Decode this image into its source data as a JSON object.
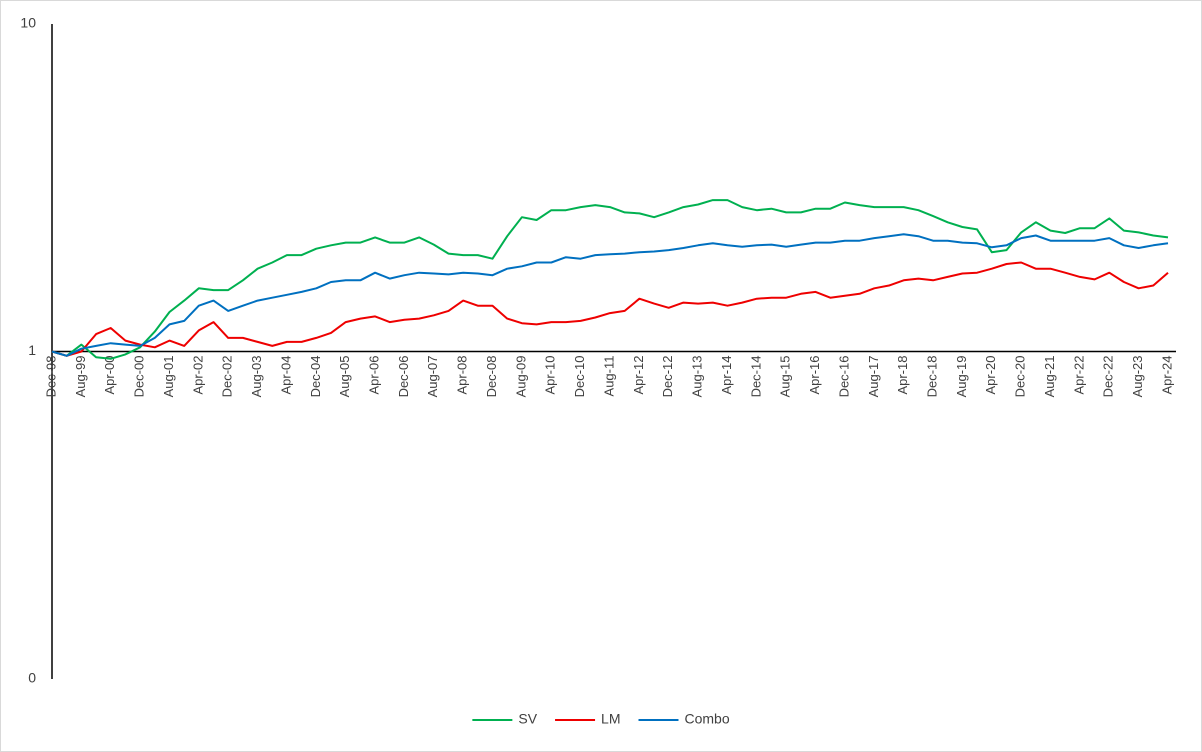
{
  "chart_data": {
    "type": "line",
    "categories": [
      "Dec-98",
      null,
      "Aug-99",
      null,
      "Apr-00",
      null,
      "Dec-00",
      null,
      "Aug-01",
      null,
      "Apr-02",
      null,
      "Dec-02",
      null,
      "Aug-03",
      null,
      "Apr-04",
      null,
      "Dec-04",
      null,
      "Aug-05",
      null,
      "Apr-06",
      null,
      "Dec-06",
      null,
      "Aug-07",
      null,
      "Apr-08",
      null,
      "Dec-08",
      null,
      "Aug-09",
      null,
      "Apr-10",
      null,
      "Dec-10",
      null,
      "Aug-11",
      null,
      "Apr-12",
      null,
      "Dec-12",
      null,
      "Aug-13",
      null,
      "Apr-14",
      null,
      "Dec-14",
      null,
      "Aug-15",
      null,
      "Apr-16",
      null,
      "Dec-16",
      null,
      "Aug-17",
      null,
      "Apr-18",
      null,
      "Dec-18",
      null,
      "Aug-19",
      null,
      "Apr-20",
      null,
      "Dec-20",
      null,
      "Aug-21",
      null,
      "Apr-22",
      null,
      "Dec-22",
      null,
      "Aug-23",
      null,
      "Apr-24"
    ],
    "series": [
      {
        "name": "SV",
        "color": "#00b050",
        "values": [
          1.0,
          0.97,
          1.05,
          0.96,
          0.95,
          0.98,
          1.03,
          1.15,
          1.32,
          1.43,
          1.56,
          1.54,
          1.54,
          1.65,
          1.79,
          1.87,
          1.97,
          1.97,
          2.06,
          2.11,
          2.15,
          2.15,
          2.23,
          2.15,
          2.15,
          2.23,
          2.12,
          1.99,
          1.97,
          1.97,
          1.92,
          2.25,
          2.57,
          2.52,
          2.7,
          2.7,
          2.76,
          2.8,
          2.76,
          2.66,
          2.64,
          2.57,
          2.66,
          2.76,
          2.81,
          2.9,
          2.9,
          2.76,
          2.7,
          2.73,
          2.66,
          2.66,
          2.73,
          2.73,
          2.85,
          2.8,
          2.76,
          2.76,
          2.76,
          2.7,
          2.59,
          2.48,
          2.4,
          2.36,
          2.01,
          2.04,
          2.31,
          2.48,
          2.34,
          2.3,
          2.38,
          2.38,
          2.55,
          2.34,
          2.31,
          2.26,
          2.23
        ]
      },
      {
        "name": "LM",
        "color": "#ee0000",
        "values": [
          1.0,
          0.97,
          1.0,
          1.13,
          1.18,
          1.08,
          1.05,
          1.03,
          1.08,
          1.04,
          1.16,
          1.23,
          1.1,
          1.1,
          1.07,
          1.04,
          1.07,
          1.07,
          1.1,
          1.14,
          1.23,
          1.26,
          1.28,
          1.23,
          1.25,
          1.26,
          1.29,
          1.33,
          1.43,
          1.38,
          1.38,
          1.26,
          1.22,
          1.21,
          1.23,
          1.23,
          1.24,
          1.27,
          1.31,
          1.33,
          1.45,
          1.4,
          1.36,
          1.41,
          1.4,
          1.41,
          1.38,
          1.41,
          1.45,
          1.46,
          1.46,
          1.5,
          1.52,
          1.46,
          1.48,
          1.5,
          1.56,
          1.59,
          1.65,
          1.67,
          1.65,
          1.69,
          1.73,
          1.74,
          1.79,
          1.85,
          1.87,
          1.79,
          1.79,
          1.74,
          1.69,
          1.66,
          1.74,
          1.63,
          1.56,
          1.59,
          1.74
        ]
      },
      {
        "name": "Combo",
        "color": "#0070c0",
        "values": [
          1.0,
          0.97,
          1.02,
          1.04,
          1.06,
          1.05,
          1.04,
          1.1,
          1.21,
          1.24,
          1.38,
          1.43,
          1.33,
          1.38,
          1.43,
          1.46,
          1.49,
          1.52,
          1.56,
          1.63,
          1.65,
          1.65,
          1.74,
          1.67,
          1.71,
          1.74,
          1.73,
          1.72,
          1.74,
          1.73,
          1.71,
          1.79,
          1.82,
          1.87,
          1.87,
          1.94,
          1.92,
          1.97,
          1.98,
          1.99,
          2.01,
          2.02,
          2.04,
          2.07,
          2.11,
          2.14,
          2.11,
          2.09,
          2.11,
          2.12,
          2.09,
          2.12,
          2.15,
          2.15,
          2.18,
          2.18,
          2.22,
          2.25,
          2.28,
          2.25,
          2.18,
          2.18,
          2.15,
          2.14,
          2.08,
          2.11,
          2.22,
          2.26,
          2.18,
          2.18,
          2.18,
          2.18,
          2.22,
          2.11,
          2.07,
          2.11,
          2.14
        ]
      }
    ],
    "ylim": [
      0.1,
      10
    ],
    "yticks": [
      {
        "value": 0.1,
        "label": "0"
      },
      1,
      10
    ],
    "log_scale": true,
    "grid": false,
    "xaxis_crossing": 1,
    "legend_position": "bottom"
  }
}
